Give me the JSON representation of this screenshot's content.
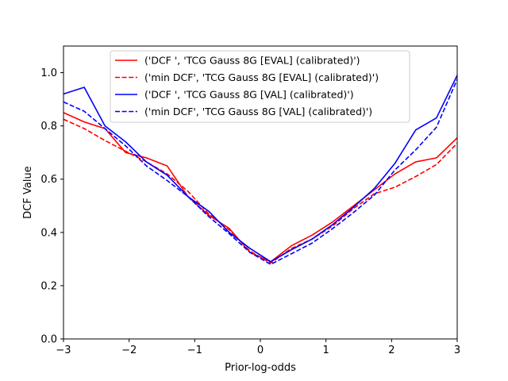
{
  "chart_data": {
    "type": "line",
    "title": "",
    "xlabel": "Prior-log-odds",
    "ylabel": "DCF Value",
    "xlim": [
      -3,
      3
    ],
    "ylim": [
      0,
      1.1
    ],
    "xticks": [
      -3,
      -2,
      -1,
      0,
      1,
      2,
      3
    ],
    "xtick_labels": [
      "−3",
      "−2",
      "−1",
      "0",
      "1",
      "2",
      "3"
    ],
    "yticks": [
      0.0,
      0.2,
      0.4,
      0.6,
      0.8,
      1.0
    ],
    "ytick_labels": [
      "0.0",
      "0.2",
      "0.4",
      "0.6",
      "0.8",
      "1.0"
    ],
    "grid": false,
    "legend_position": "top-center",
    "x": [
      -3.0,
      -2.684,
      -2.368,
      -2.053,
      -1.737,
      -1.421,
      -1.105,
      -0.789,
      -0.474,
      -0.158,
      0.158,
      0.474,
      0.789,
      1.105,
      1.421,
      1.737,
      2.053,
      2.368,
      2.684,
      3.0
    ],
    "series": [
      {
        "name": "('DCF ', 'TCG Gauss 8G [EVAL] (calibrated)')",
        "color": "#ff0000",
        "dash": "solid",
        "values": [
          0.85,
          0.815,
          0.79,
          0.7,
          0.68,
          0.65,
          0.535,
          0.465,
          0.415,
          0.325,
          0.29,
          0.35,
          0.39,
          0.44,
          0.5,
          0.56,
          0.62,
          0.665,
          0.68,
          0.755
        ]
      },
      {
        "name": "('min DCF', 'TCG Gauss 8G [EVAL] (calibrated)')",
        "color": "#ff0000",
        "dash": "dashed",
        "values": [
          0.825,
          0.79,
          0.745,
          0.705,
          0.665,
          0.62,
          0.555,
          0.47,
          0.41,
          0.33,
          0.285,
          0.34,
          0.375,
          0.425,
          0.49,
          0.545,
          0.57,
          0.61,
          0.655,
          0.735
        ]
      },
      {
        "name": "('DCF ', 'TCG Gauss 8G [VAL] (calibrated)')",
        "color": "#0000ff",
        "dash": "solid",
        "values": [
          0.92,
          0.945,
          0.8,
          0.74,
          0.665,
          0.615,
          0.535,
          0.48,
          0.4,
          0.34,
          0.29,
          0.335,
          0.375,
          0.43,
          0.495,
          0.565,
          0.66,
          0.785,
          0.83,
          0.99
        ]
      },
      {
        "name": "('min DCF', 'TCG Gauss 8G [VAL] (calibrated)')",
        "color": "#0000ff",
        "dash": "dashed",
        "values": [
          0.89,
          0.855,
          0.79,
          0.725,
          0.65,
          0.595,
          0.535,
          0.46,
          0.395,
          0.325,
          0.28,
          0.32,
          0.36,
          0.415,
          0.475,
          0.54,
          0.635,
          0.71,
          0.795,
          0.975
        ]
      }
    ]
  }
}
